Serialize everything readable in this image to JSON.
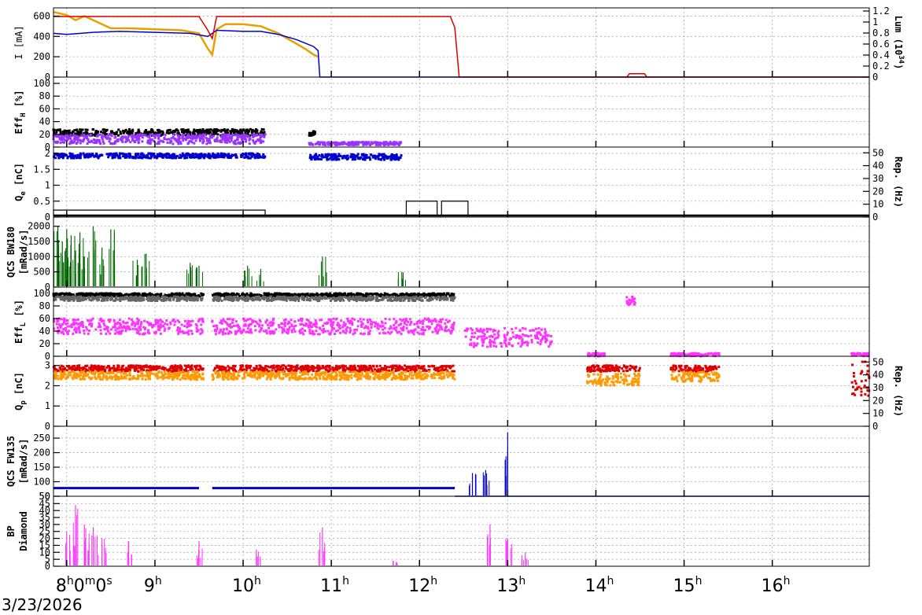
{
  "colors": {
    "orange": "#e6a000",
    "blue": "#0000cc",
    "red": "#dd0000",
    "purple": "#9933ff",
    "black": "#000000",
    "green": "#006600",
    "magenta": "#ff33ff",
    "gray": "#666666",
    "cyan": "#00cccc",
    "darkorange": "#ff9900"
  },
  "x_axis": {
    "ticks": [
      {
        "hour": 8,
        "label": "8",
        "sup": "h",
        "rest": "0",
        "sup2": "m",
        "rest2": "0",
        "sup3": "s"
      },
      {
        "hour": 9,
        "label": "9",
        "sup": "h"
      },
      {
        "hour": 10,
        "label": "10",
        "sup": "h"
      },
      {
        "hour": 11,
        "label": "11",
        "sup": "h"
      },
      {
        "hour": 12,
        "label": "12",
        "sup": "h"
      },
      {
        "hour": 13,
        "label": "13",
        "sup": "h"
      },
      {
        "hour": 14,
        "label": "14",
        "sup": "h"
      },
      {
        "hour": 15,
        "label": "15",
        "sup": "h"
      },
      {
        "hour": 16,
        "label": "16",
        "sup": "h"
      }
    ],
    "range_hours": [
      7.85,
      17.1
    ],
    "date": "3/23/2026"
  },
  "chart_data": [
    {
      "type": "line",
      "panel": "current_lum",
      "ylabel_left": "I [mA]",
      "ylabel_right": "Lum (10^34)",
      "ylabel_right_parts": [
        "Lum (10",
        "34",
        ")"
      ],
      "ylim": [
        0,
        650
      ],
      "yticks": [
        "0",
        "200",
        "400",
        "600"
      ],
      "ylim_right": [
        0,
        1.2
      ],
      "yticks_right": [
        "0",
        "0.2",
        "0.4",
        "0.6",
        "0.8",
        "1",
        "1.2"
      ],
      "series": [
        {
          "color": "orange",
          "x": [
            7.85,
            8.0,
            8.1,
            8.2,
            8.3,
            8.4,
            8.5,
            8.7,
            9.0,
            9.3,
            9.5,
            9.6,
            9.65,
            9.7,
            9.8,
            10.0,
            10.2,
            10.4,
            10.5,
            10.6,
            10.7,
            10.8,
            10.85
          ],
          "y": [
            640,
            610,
            560,
            600,
            560,
            520,
            480,
            480,
            470,
            460,
            430,
            280,
            220,
            470,
            520,
            520,
            500,
            430,
            380,
            330,
            280,
            220,
            200
          ]
        },
        {
          "color": "blue",
          "x": [
            7.85,
            8.0,
            8.3,
            8.6,
            9.0,
            9.4,
            9.6,
            9.7,
            10.0,
            10.2,
            10.4,
            10.6,
            10.8,
            10.85,
            10.87,
            12.4,
            17.1
          ],
          "y": [
            430,
            420,
            440,
            450,
            440,
            430,
            400,
            460,
            450,
            450,
            420,
            370,
            300,
            260,
            0,
            0,
            0
          ]
        },
        {
          "color": "red",
          "x": [
            7.85,
            9.5,
            9.6,
            9.65,
            9.7,
            10.0,
            12.35,
            12.4,
            12.45,
            17.1
          ],
          "y": [
            1.1,
            1.1,
            0.85,
            0.7,
            1.1,
            1.1,
            1.1,
            0.9,
            0,
            0
          ],
          "axis": "right"
        },
        {
          "color": "red",
          "x": [
            14.35,
            14.38,
            14.55,
            14.58
          ],
          "y": [
            0,
            0.06,
            0.06,
            0
          ],
          "axis": "right"
        }
      ]
    },
    {
      "type": "scatter",
      "panel": "eff_h",
      "ylabel_parts": [
        "Eff",
        "H",
        " [%]"
      ],
      "ylim": [
        0,
        105
      ],
      "yticks": [
        "0",
        "20",
        "40",
        "60",
        "80",
        "100"
      ],
      "series": [
        {
          "color": "black",
          "segments": [
            [
              7.85,
              10.25,
              18,
              28
            ],
            [
              10.75,
              10.82,
              18,
              25
            ]
          ]
        },
        {
          "color": "purple",
          "segments": [
            [
              7.85,
              10.25,
              5,
              20
            ],
            [
              10.75,
              11.8,
              3,
              8
            ]
          ]
        }
      ]
    },
    {
      "type": "scatter",
      "panel": "qe",
      "ylabel_parts": [
        "Q",
        "e",
        " [nC]"
      ],
      "ylabel_right": "Rep. (Hz)",
      "ylim": [
        0,
        2.1
      ],
      "yticks": [
        "0",
        "0.5",
        "1",
        "1.5",
        "2"
      ],
      "ylim_right": [
        0,
        52
      ],
      "yticks_right": [
        "0",
        "10",
        "20",
        "30",
        "40",
        "50"
      ],
      "series": [
        {
          "color": "blue",
          "segments": [
            [
              7.85,
              10.25,
              1.85,
              2.0
            ],
            [
              10.75,
              11.8,
              1.8,
              1.98
            ]
          ]
        },
        {
          "color": "black",
          "step": [
            [
              7.85,
              10.25,
              0.22
            ],
            [
              11.85,
              12.2,
              0.5
            ],
            [
              12.25,
              12.55,
              0.5
            ]
          ]
        }
      ]
    },
    {
      "type": "line",
      "panel": "qcs_bw180",
      "ylabel_parts": [
        "QCS BW180",
        "[mRad/s]"
      ],
      "ylim": [
        0,
        2200
      ],
      "yticks": [
        "0",
        "500",
        "1000",
        "1500",
        "2000"
      ],
      "series": [
        {
          "color": "green",
          "spikes": [
            [
              7.9,
              2000
            ],
            [
              7.95,
              1500
            ],
            [
              8.0,
              1900
            ],
            [
              8.05,
              1700
            ],
            [
              8.1,
              1200
            ],
            [
              8.15,
              1800
            ],
            [
              8.2,
              1000
            ],
            [
              8.3,
              2000
            ],
            [
              8.4,
              1300
            ],
            [
              8.5,
              1900
            ],
            [
              8.8,
              900
            ],
            [
              8.9,
              1100
            ],
            [
              9.4,
              800
            ],
            [
              9.5,
              700
            ],
            [
              10.05,
              700
            ],
            [
              10.2,
              600
            ],
            [
              10.9,
              1000
            ],
            [
              11.8,
              500
            ]
          ]
        }
      ]
    },
    {
      "type": "scatter",
      "panel": "eff_l",
      "ylabel_parts": [
        "Eff",
        "L",
        " [%]"
      ],
      "ylim": [
        0,
        105
      ],
      "yticks": [
        "0",
        "20",
        "40",
        "60",
        "80",
        "100"
      ],
      "series": [
        {
          "color": "black",
          "segments": [
            [
              7.85,
              9.55,
              95,
              100
            ],
            [
              9.65,
              12.4,
              95,
              100
            ]
          ]
        },
        {
          "color": "gray",
          "segments": [
            [
              7.85,
              9.55,
              88,
              95
            ],
            [
              9.65,
              12.4,
              88,
              95
            ]
          ]
        },
        {
          "color": "magenta",
          "segments": [
            [
              7.85,
              9.55,
              35,
              60
            ],
            [
              9.65,
              12.4,
              35,
              60
            ],
            [
              12.5,
              13.5,
              15,
              45
            ],
            [
              14.35,
              14.45,
              80,
              95
            ],
            [
              13.9,
              14.1,
              0,
              5
            ],
            [
              14.85,
              15.4,
              0,
              5
            ],
            [
              16.9,
              17.1,
              0,
              5
            ]
          ]
        }
      ]
    },
    {
      "type": "scatter",
      "panel": "qp",
      "ylabel_parts": [
        "Q",
        "p",
        " [nC]"
      ],
      "ylabel_right": "Rep. (Hz)",
      "ylim": [
        0,
        3.3
      ],
      "yticks": [
        "0",
        "1",
        "2",
        "3"
      ],
      "ylim_right": [
        0,
        52
      ],
      "yticks_right": [
        "0",
        "10",
        "20",
        "30",
        "40",
        "50"
      ],
      "series": [
        {
          "color": "red",
          "segments": [
            [
              7.85,
              9.55,
              2.7,
              3.0
            ],
            [
              9.65,
              12.4,
              2.7,
              3.0
            ],
            [
              13.9,
              14.5,
              2.7,
              3.0
            ],
            [
              14.85,
              15.4,
              2.7,
              3.0
            ],
            [
              16.9,
              17.1,
              1.5,
              3.2
            ]
          ]
        },
        {
          "color": "darkorange",
          "segments": [
            [
              7.85,
              9.55,
              2.3,
              2.7
            ],
            [
              9.65,
              12.4,
              2.3,
              2.7
            ],
            [
              13.9,
              14.5,
              2.0,
              2.6
            ],
            [
              14.85,
              15.4,
              2.2,
              2.7
            ]
          ]
        }
      ]
    },
    {
      "type": "line",
      "panel": "qcs_fw135",
      "ylabel_parts": [
        "QCS FW135",
        "[mRad/s]"
      ],
      "ylim": [
        50,
        280
      ],
      "yticks": [
        "50",
        "50",
        "100",
        "150",
        "200",
        "250"
      ],
      "series": [
        {
          "color": "blue",
          "level": [
            [
              7.85,
              9.5,
              78
            ],
            [
              9.65,
              12.4,
              78
            ],
            [
              12.4,
              17.1,
              50
            ]
          ],
          "spikes": [
            [
              12.6,
              130
            ],
            [
              13.0,
              270
            ],
            [
              12.75,
              140
            ]
          ]
        }
      ]
    },
    {
      "type": "line",
      "panel": "bp_diamond",
      "ylabel_parts": [
        "BP",
        "Diamond"
      ],
      "ylim": [
        0,
        48
      ],
      "yticks": [
        "0",
        "5",
        "10",
        "15",
        "20",
        "25",
        "30",
        "35",
        "40",
        "45"
      ],
      "series": [
        {
          "color": "magenta",
          "spikes": [
            [
              8.0,
              25
            ],
            [
              8.1,
              44
            ],
            [
              8.2,
              30
            ],
            [
              8.3,
              28
            ],
            [
              8.4,
              20
            ],
            [
              8.7,
              18
            ],
            [
              9.5,
              18
            ],
            [
              10.15,
              12
            ],
            [
              10.9,
              28
            ],
            [
              11.7,
              4
            ],
            [
              12.8,
              30
            ],
            [
              13.0,
              20
            ],
            [
              13.2,
              10
            ]
          ]
        }
      ]
    }
  ]
}
